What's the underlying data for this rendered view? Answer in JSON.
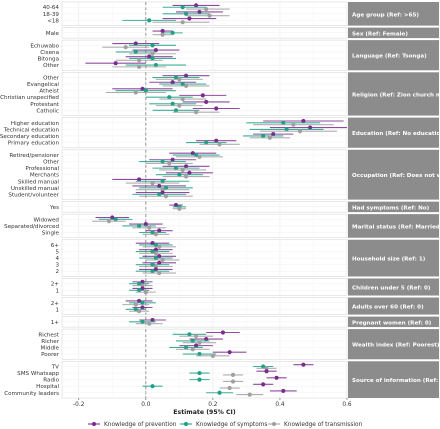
{
  "chart_data": {
    "type": "scatter",
    "subtype": "forest-plot",
    "xlabel": "Estimate (95% CI)",
    "xlim": [
      -0.25,
      0.6
    ],
    "xticks": [
      "-0.2",
      "0.0",
      "0.2",
      "0.4",
      "0.6"
    ],
    "xtick_values": [
      -0.2,
      0.0,
      0.2,
      0.4,
      0.6
    ],
    "reference_line": 0,
    "grid": true,
    "legend_position": "bottom",
    "series": [
      {
        "name": "Knowledge of prevention",
        "color": "#7b2d8e"
      },
      {
        "name": "Knowledge of symptoms",
        "color": "#1fa187"
      },
      {
        "name": "Knowledge of transmission",
        "color": "#a0a0a0"
      }
    ],
    "panels": [
      {
        "label": "Age group (Ref: >65)",
        "rows": [
          {
            "label": "40-64",
            "est": [
              0.15,
              0.11,
              0.18
            ],
            "lo": [
              0.08,
              0.05,
              0.12
            ],
            "hi": [
              0.22,
              0.18,
              0.25
            ]
          },
          {
            "label": "18-39",
            "est": [
              0.16,
              0.12,
              0.19
            ],
            "lo": [
              0.09,
              0.05,
              0.12
            ],
            "hi": [
              0.23,
              0.19,
              0.25
            ]
          },
          {
            "label": "<18",
            "est": [
              0.13,
              0.01,
              0.11
            ],
            "lo": [
              0.05,
              -0.07,
              0.02
            ],
            "hi": [
              0.21,
              0.09,
              0.19
            ]
          }
        ]
      },
      {
        "label": "Sex (Ref: Female)",
        "rows": [
          {
            "label": "Male",
            "est": [
              0.05,
              0.08,
              0.05
            ],
            "lo": [
              0.02,
              0.05,
              0.02
            ],
            "hi": [
              0.08,
              0.11,
              0.08
            ]
          }
        ]
      },
      {
        "label": "Language (Ref: Tsonga)",
        "rows": [
          {
            "label": "Echuwabo",
            "est": [
              -0.03,
              0.02,
              -0.06
            ],
            "lo": [
              -0.1,
              -0.05,
              -0.13
            ],
            "hi": [
              0.04,
              0.09,
              0.01
            ]
          },
          {
            "label": "Cisena",
            "est": [
              0.03,
              -0.03,
              0.02
            ],
            "lo": [
              -0.04,
              -0.09,
              -0.05
            ],
            "hi": [
              0.1,
              0.03,
              0.09
            ]
          },
          {
            "label": "Bitonga",
            "est": [
              0.01,
              0.02,
              -0.02
            ],
            "lo": [
              -0.06,
              -0.05,
              -0.09
            ],
            "hi": [
              0.08,
              0.09,
              0.05
            ]
          },
          {
            "label": "Other",
            "est": [
              -0.09,
              0.03,
              -0.02
            ],
            "lo": [
              -0.18,
              -0.06,
              -0.1
            ],
            "hi": [
              0.0,
              0.12,
              0.06
            ]
          }
        ]
      },
      {
        "label": "Religion (Ref: Zion church member)",
        "rows": [
          {
            "label": "Other",
            "est": [
              0.12,
              0.09,
              0.1
            ],
            "lo": [
              0.05,
              0.02,
              0.03
            ],
            "hi": [
              0.19,
              0.16,
              0.17
            ]
          },
          {
            "label": "Evangelical",
            "est": [
              0.08,
              0.11,
              0.12
            ],
            "lo": [
              0.01,
              0.04,
              0.05
            ],
            "hi": [
              0.15,
              0.18,
              0.19
            ]
          },
          {
            "label": "Atheist",
            "est": [
              -0.01,
              0.0,
              -0.03
            ],
            "lo": [
              -0.1,
              -0.09,
              -0.12
            ],
            "hi": [
              0.08,
              0.09,
              0.06
            ]
          },
          {
            "label": "Christian unspecified",
            "est": [
              0.17,
              0.07,
              0.11
            ],
            "lo": [
              0.1,
              0.0,
              0.04
            ],
            "hi": [
              0.24,
              0.14,
              0.18
            ]
          },
          {
            "label": "Protestant",
            "est": [
              0.18,
              0.08,
              0.1
            ],
            "lo": [
              0.11,
              0.01,
              0.03
            ],
            "hi": [
              0.25,
              0.15,
              0.17
            ]
          },
          {
            "label": "Catholic",
            "est": [
              0.21,
              0.09,
              0.15
            ],
            "lo": [
              0.14,
              0.02,
              0.08
            ],
            "hi": [
              0.28,
              0.16,
              0.22
            ]
          }
        ]
      },
      {
        "label": "Education (Ref: No education)",
        "rows": [
          {
            "label": "Higher education",
            "est": [
              0.47,
              0.41,
              0.44
            ],
            "lo": [
              0.35,
              0.3,
              0.32
            ],
            "hi": [
              0.59,
              0.52,
              0.56
            ]
          },
          {
            "label": "Technical education",
            "est": [
              0.49,
              0.42,
              0.46
            ],
            "lo": [
              0.37,
              0.31,
              0.34
            ],
            "hi": [
              0.6,
              0.53,
              0.57
            ]
          },
          {
            "label": "Secondary education",
            "est": [
              0.38,
              0.35,
              0.37
            ],
            "lo": [
              0.32,
              0.29,
              0.31
            ],
            "hi": [
              0.44,
              0.41,
              0.43
            ]
          },
          {
            "label": "Primary education",
            "est": [
              0.21,
              0.18,
              0.22
            ],
            "lo": [
              0.15,
              0.12,
              0.16
            ],
            "hi": [
              0.27,
              0.24,
              0.28
            ]
          }
        ]
      },
      {
        "label": "Occupation (Ref: Does not work)",
        "rows": [
          {
            "label": "Retired/pensioner",
            "est": [
              0.14,
              0.15,
              0.16
            ],
            "lo": [
              0.07,
              0.08,
              0.09
            ],
            "hi": [
              0.21,
              0.22,
              0.23
            ]
          },
          {
            "label": "Other",
            "est": [
              0.08,
              0.05,
              0.07
            ],
            "lo": [
              0.01,
              -0.02,
              0.0
            ],
            "hi": [
              0.15,
              0.12,
              0.14
            ]
          },
          {
            "label": "Professional",
            "est": [
              0.12,
              0.09,
              0.11
            ],
            "lo": [
              0.05,
              0.02,
              0.04
            ],
            "hi": [
              0.19,
              0.16,
              0.18
            ]
          },
          {
            "label": "Merchants",
            "est": [
              0.13,
              0.1,
              0.12
            ],
            "lo": [
              0.06,
              0.03,
              0.05
            ],
            "hi": [
              0.2,
              0.17,
              0.19
            ]
          },
          {
            "label": "Skilled manual",
            "est": [
              -0.02,
              0.05,
              0.02
            ],
            "lo": [
              -0.1,
              -0.03,
              -0.06
            ],
            "hi": [
              0.06,
              0.13,
              0.1
            ]
          },
          {
            "label": "Unskilled manual",
            "est": [
              0.04,
              0.06,
              0.05
            ],
            "lo": [
              -0.04,
              -0.02,
              -0.03
            ],
            "hi": [
              0.12,
              0.14,
              0.13
            ]
          },
          {
            "label": "Student/volunteer",
            "est": [
              0.05,
              0.04,
              0.06
            ],
            "lo": [
              -0.03,
              -0.04,
              -0.02
            ],
            "hi": [
              0.13,
              0.12,
              0.14
            ]
          }
        ]
      },
      {
        "label": "Had symptoms (Ref: No)",
        "rows": [
          {
            "label": "Yes",
            "est": [
              0.09,
              0.1,
              0.1
            ],
            "lo": [
              0.07,
              0.08,
              0.08
            ],
            "hi": [
              0.11,
              0.12,
              0.12
            ]
          }
        ]
      },
      {
        "label": "Marital status (Ref: Married)",
        "rows": [
          {
            "label": "Widowed",
            "est": [
              -0.1,
              -0.09,
              -0.11
            ],
            "lo": [
              -0.15,
              -0.14,
              -0.16
            ],
            "hi": [
              -0.05,
              -0.04,
              -0.06
            ]
          },
          {
            "label": "Separated/divorced",
            "est": [
              0.0,
              -0.02,
              0.01
            ],
            "lo": [
              -0.05,
              -0.07,
              -0.04
            ],
            "hi": [
              0.05,
              0.03,
              0.06
            ]
          },
          {
            "label": "Single",
            "est": [
              0.04,
              0.02,
              0.03
            ],
            "lo": [
              0.0,
              -0.02,
              -0.01
            ],
            "hi": [
              0.08,
              0.06,
              0.07
            ]
          }
        ]
      },
      {
        "label": "Household size (Ref: 1)",
        "rows": [
          {
            "label": "6+",
            "est": [
              0.02,
              0.03,
              0.04
            ],
            "lo": [
              -0.03,
              -0.02,
              -0.01
            ],
            "hi": [
              0.07,
              0.08,
              0.09
            ]
          },
          {
            "label": "5",
            "est": [
              0.03,
              0.02,
              0.03
            ],
            "lo": [
              -0.02,
              -0.03,
              -0.02
            ],
            "hi": [
              0.08,
              0.07,
              0.08
            ]
          },
          {
            "label": "4",
            "est": [
              0.04,
              0.03,
              0.05
            ],
            "lo": [
              -0.01,
              -0.02,
              0.0
            ],
            "hi": [
              0.09,
              0.08,
              0.1
            ]
          },
          {
            "label": "3",
            "est": [
              0.04,
              0.02,
              0.03
            ],
            "lo": [
              -0.01,
              -0.03,
              -0.02
            ],
            "hi": [
              0.09,
              0.07,
              0.08
            ]
          },
          {
            "label": "2",
            "est": [
              0.03,
              0.02,
              0.04
            ],
            "lo": [
              -0.02,
              -0.03,
              -0.01
            ],
            "hi": [
              0.08,
              0.07,
              0.09
            ]
          }
        ]
      },
      {
        "label": "Children under 5 (Ref: 0)",
        "rows": [
          {
            "label": "2+",
            "est": [
              -0.01,
              -0.02,
              -0.01
            ],
            "lo": [
              -0.04,
              -0.05,
              -0.04
            ],
            "hi": [
              0.02,
              0.01,
              0.02
            ]
          },
          {
            "label": "1",
            "est": [
              -0.01,
              -0.02,
              0.0
            ],
            "lo": [
              -0.04,
              -0.05,
              -0.03
            ],
            "hi": [
              0.02,
              0.01,
              0.03
            ]
          }
        ]
      },
      {
        "label": "Adults over 60 (Ref: 0)",
        "rows": [
          {
            "label": "2+",
            "est": [
              -0.02,
              -0.01,
              -0.03
            ],
            "lo": [
              -0.06,
              -0.05,
              -0.07
            ],
            "hi": [
              0.02,
              0.03,
              0.01
            ]
          },
          {
            "label": "1",
            "est": [
              -0.01,
              -0.03,
              -0.02
            ],
            "lo": [
              -0.04,
              -0.06,
              -0.05
            ],
            "hi": [
              0.02,
              0.0,
              0.01
            ]
          }
        ]
      },
      {
        "label": "Pregnant women (Ref: 0)",
        "rows": [
          {
            "label": "1+",
            "est": [
              0.02,
              -0.01,
              0.01
            ],
            "lo": [
              -0.02,
              -0.05,
              -0.03
            ],
            "hi": [
              0.06,
              0.03,
              0.05
            ]
          }
        ]
      },
      {
        "label": "Wealth index (Ref: Poorest)",
        "rows": [
          {
            "label": "Richest",
            "est": [
              0.23,
              0.13,
              0.15
            ],
            "lo": [
              0.18,
              0.08,
              0.1
            ],
            "hi": [
              0.28,
              0.18,
              0.2
            ]
          },
          {
            "label": "Richer",
            "est": [
              0.18,
              0.14,
              0.16
            ],
            "lo": [
              0.13,
              0.09,
              0.11
            ],
            "hi": [
              0.23,
              0.19,
              0.21
            ]
          },
          {
            "label": "Middle",
            "est": [
              0.15,
              0.12,
              0.14
            ],
            "lo": [
              0.1,
              0.07,
              0.09
            ],
            "hi": [
              0.2,
              0.17,
              0.19
            ]
          },
          {
            "label": "Poorer",
            "est": [
              0.25,
              0.16,
              0.2
            ],
            "lo": [
              0.2,
              0.11,
              0.15
            ],
            "hi": [
              0.3,
              0.21,
              0.25
            ]
          }
        ]
      },
      {
        "label": "Source of information (Ref: No)",
        "rows": [
          {
            "label": "TV",
            "est": [
              0.47,
              0.35,
              0.36
            ],
            "lo": [
              0.44,
              0.32,
              0.33
            ],
            "hi": [
              0.5,
              0.38,
              0.39
            ]
          },
          {
            "label": "SMS Whatsapp",
            "est": [
              0.36,
              0.16,
              0.26
            ],
            "lo": [
              0.33,
              0.13,
              0.23
            ],
            "hi": [
              0.39,
              0.19,
              0.29
            ]
          },
          {
            "label": "Radio",
            "est": [
              0.39,
              0.16,
              0.26
            ],
            "lo": [
              0.36,
              0.13,
              0.23
            ],
            "hi": [
              0.42,
              0.19,
              0.29
            ]
          },
          {
            "label": "Hospital",
            "est": [
              0.35,
              0.02,
              0.25
            ],
            "lo": [
              0.32,
              -0.01,
              0.22
            ],
            "hi": [
              0.38,
              0.05,
              0.28
            ]
          },
          {
            "label": "Community leaders",
            "est": [
              0.41,
              0.22,
              0.31
            ],
            "lo": [
              0.37,
              0.18,
              0.27
            ],
            "hi": [
              0.45,
              0.26,
              0.35
            ]
          }
        ]
      }
    ]
  }
}
